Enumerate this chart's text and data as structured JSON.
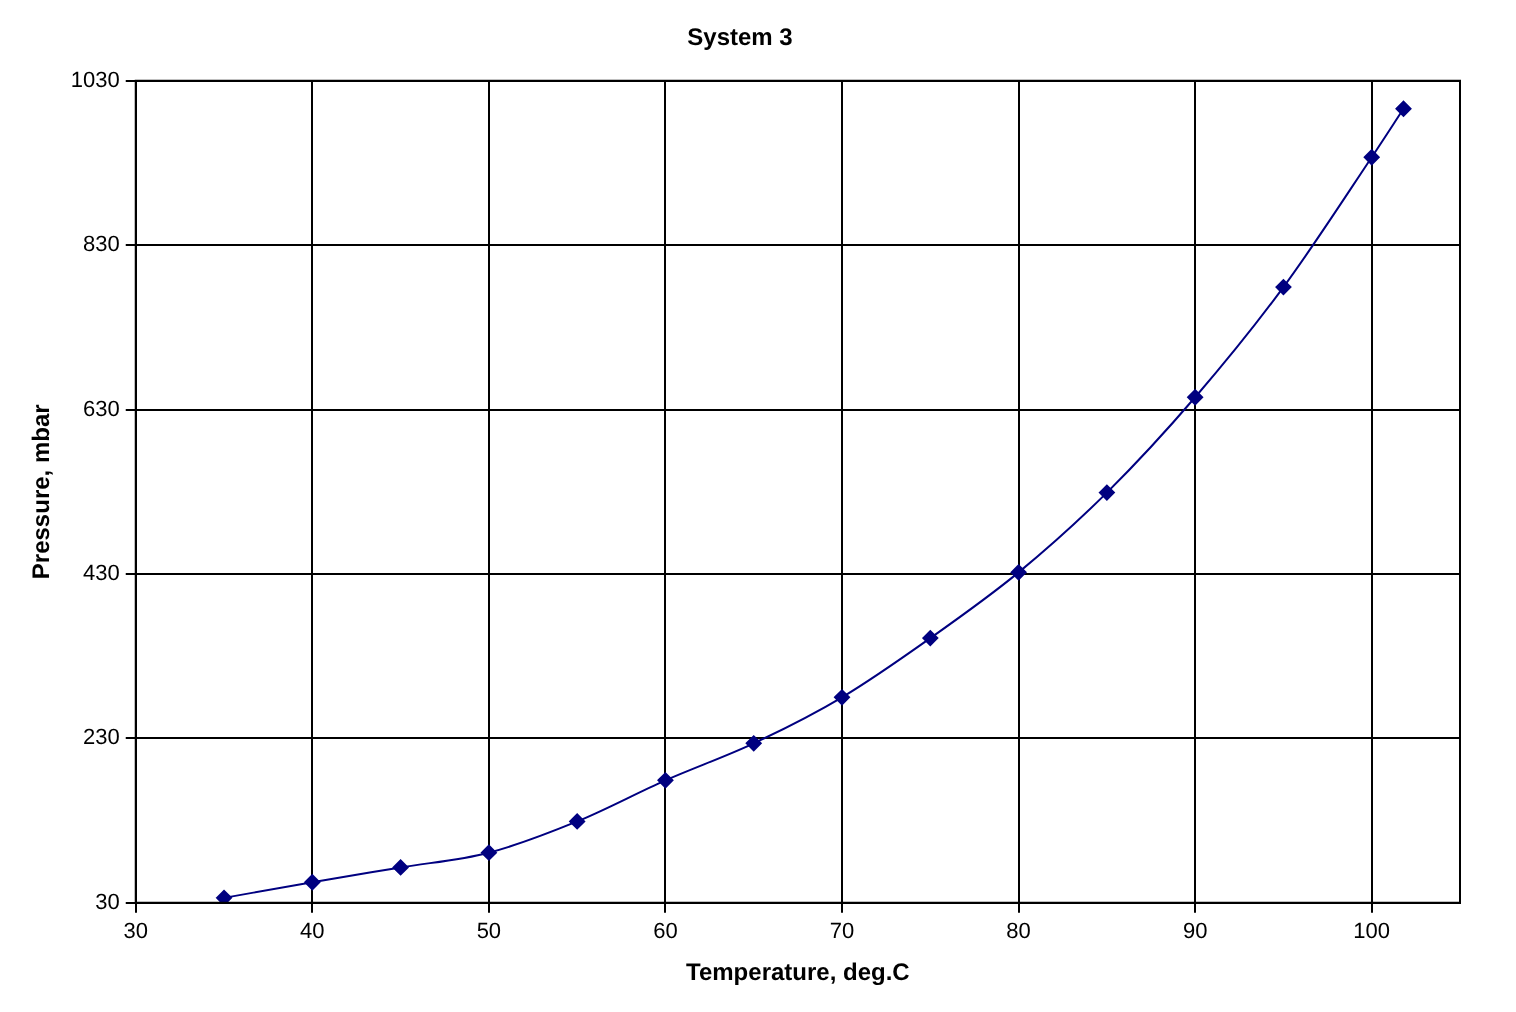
{
  "chart_data": {
    "type": "line",
    "title": "System 3",
    "xlabel": "Temperature, deg.C",
    "ylabel": "Pressure, mbar",
    "x": [
      35,
      40,
      45,
      50,
      55,
      60,
      65,
      70,
      75,
      80,
      85,
      90,
      95,
      100,
      101.8
    ],
    "series": [
      {
        "color": "#000080",
        "values": [
          36,
          55,
          73,
          91,
          129,
          179,
          224,
          280,
          352,
          432,
          529,
          645,
          779,
          937,
          996
        ]
      }
    ],
    "xlim": [
      30,
      105
    ],
    "xticks": [
      30,
      40,
      50,
      60,
      70,
      80,
      90,
      100
    ],
    "ylim": [
      30,
      1030
    ],
    "yticks": [
      30,
      230,
      430,
      630,
      830,
      1030
    ],
    "grid": true,
    "legend": false,
    "marker": "diamond",
    "line_style": "solid"
  }
}
